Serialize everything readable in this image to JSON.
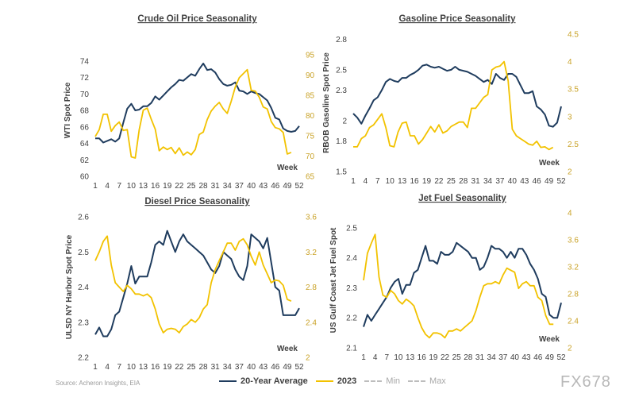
{
  "colors": {
    "avg": "#1f3c5e",
    "y2023": "#f2c200",
    "minmax": "#bdbdbd",
    "text": "#404040"
  },
  "legend": {
    "avg": "20-Year Average",
    "y2023": "2023",
    "min": "Min",
    "max": "Max"
  },
  "source": "Source: Acheron Insights, EIA",
  "watermark": "FX678",
  "chart_data": [
    {
      "type": "line",
      "title": "Crude Oil Price Seasonality",
      "ylabel": "WTI Spot Price",
      "xlabel": "Week",
      "xticks": [
        1,
        4,
        7,
        10,
        13,
        16,
        19,
        22,
        25,
        28,
        31,
        34,
        37,
        40,
        43,
        46,
        49,
        52
      ],
      "xlim": [
        1,
        52
      ],
      "ylim": [
        60,
        76
      ],
      "yticks": [
        60,
        62,
        64,
        66,
        68,
        70,
        72,
        74
      ],
      "y2lim": [
        65,
        97.5
      ],
      "y2ticks": [
        65,
        70,
        75,
        80,
        85,
        90,
        95
      ],
      "series": [
        {
          "name": "20-Year Average",
          "axis": "left",
          "x": [
            1,
            2,
            3,
            4,
            5,
            6,
            7,
            8,
            9,
            10,
            11,
            12,
            13,
            14,
            15,
            16,
            17,
            18,
            19,
            20,
            21,
            22,
            23,
            24,
            25,
            26,
            27,
            28,
            29,
            30,
            31,
            32,
            33,
            34,
            35,
            36,
            37,
            38,
            39,
            40,
            41,
            42,
            43,
            44,
            45,
            46,
            47,
            48,
            49,
            50,
            51,
            52
          ],
          "values": [
            64.6,
            64.6,
            64.1,
            64.3,
            64.5,
            64.2,
            64.6,
            66.5,
            68.2,
            68.8,
            68.0,
            68.1,
            68.5,
            68.5,
            68.9,
            69.7,
            69.3,
            69.8,
            70.3,
            70.8,
            71.2,
            71.7,
            71.6,
            72.0,
            72.4,
            72.2,
            73.0,
            73.7,
            72.9,
            73.0,
            72.6,
            71.8,
            71.2,
            71.0,
            71.1,
            71.4,
            70.4,
            70.3,
            70.0,
            70.3,
            70.1,
            70.0,
            69.6,
            69.2,
            68.3,
            67.1,
            66.9,
            65.8,
            65.5,
            65.4,
            65.5,
            66.1
          ]
        },
        {
          "name": "2023",
          "axis": "right",
          "x": [
            1,
            2,
            3,
            4,
            5,
            6,
            7,
            8,
            9,
            10,
            11,
            12,
            13,
            14,
            15,
            16,
            17,
            18,
            19,
            20,
            21,
            22,
            23,
            24,
            25,
            26,
            27,
            28,
            29,
            30,
            31,
            32,
            33,
            34,
            35,
            36,
            37,
            38,
            39,
            40,
            41,
            42,
            43,
            44,
            45,
            46,
            47,
            48,
            49,
            50
          ],
          "values": [
            74.8,
            76.5,
            80.3,
            80.3,
            76.1,
            77.5,
            78.4,
            76.3,
            76.5,
            69.8,
            69.5,
            76.5,
            81.3,
            81.8,
            79.1,
            76.6,
            71.3,
            72.2,
            71.6,
            72.1,
            70.6,
            72.0,
            70.2,
            71.0,
            70.3,
            71.6,
            75.3,
            75.9,
            79.0,
            81.1,
            82.3,
            83.2,
            81.6,
            80.5,
            83.5,
            87.0,
            89.3,
            90.3,
            91.3,
            86.2,
            86.0,
            84.5,
            82.1,
            81.6,
            78.5,
            77.0,
            76.7,
            75.8,
            70.5,
            70.9
          ]
        }
      ]
    },
    {
      "type": "line",
      "title": "Gasoline Price Seasonality",
      "ylabel": "RBOB Gasoline Spot Price",
      "xlabel": "Week",
      "xticks": [
        1,
        4,
        7,
        10,
        13,
        16,
        19,
        22,
        25,
        28,
        31,
        34,
        37,
        40,
        43,
        46,
        49,
        52
      ],
      "xlim": [
        1,
        52
      ],
      "ylim": [
        1.5,
        2.85
      ],
      "yticks": [
        1.5,
        1.8,
        2.0,
        2.3,
        2.5,
        2.8
      ],
      "y2lim": [
        2.0,
        4.5
      ],
      "y2ticks": [
        2.0,
        2.5,
        3.0,
        3.5,
        4.0,
        4.5
      ],
      "series": [
        {
          "name": "20-Year Average",
          "axis": "left",
          "x": [
            1,
            2,
            3,
            4,
            5,
            6,
            7,
            8,
            9,
            10,
            11,
            12,
            13,
            14,
            15,
            16,
            17,
            18,
            19,
            20,
            21,
            22,
            23,
            24,
            25,
            26,
            27,
            28,
            29,
            30,
            31,
            32,
            33,
            34,
            35,
            36,
            37,
            38,
            39,
            40,
            41,
            42,
            43,
            44,
            45,
            46,
            47,
            48,
            49,
            50,
            51,
            52
          ],
          "values": [
            2.07,
            2.03,
            1.97,
            2.05,
            2.12,
            2.2,
            2.23,
            2.3,
            2.38,
            2.41,
            2.39,
            2.38,
            2.42,
            2.42,
            2.45,
            2.47,
            2.5,
            2.54,
            2.55,
            2.53,
            2.52,
            2.53,
            2.51,
            2.49,
            2.5,
            2.53,
            2.5,
            2.49,
            2.48,
            2.46,
            2.44,
            2.41,
            2.38,
            2.4,
            2.36,
            2.46,
            2.42,
            2.4,
            2.46,
            2.46,
            2.43,
            2.35,
            2.27,
            2.27,
            2.29,
            2.14,
            2.11,
            2.06,
            1.95,
            1.94,
            1.98,
            2.14
          ]
        },
        {
          "name": "2023",
          "axis": "right",
          "x": [
            1,
            2,
            3,
            4,
            5,
            6,
            7,
            8,
            9,
            10,
            11,
            12,
            13,
            14,
            15,
            16,
            17,
            18,
            19,
            20,
            21,
            22,
            23,
            24,
            25,
            26,
            27,
            28,
            29,
            30,
            31,
            32,
            33,
            34,
            35,
            36,
            37,
            38,
            39,
            40,
            41,
            42,
            43,
            44,
            45,
            46,
            47,
            48,
            49,
            50
          ],
          "values": [
            2.45,
            2.45,
            2.6,
            2.65,
            2.8,
            2.85,
            2.95,
            3.05,
            2.8,
            2.47,
            2.45,
            2.72,
            2.88,
            2.9,
            2.65,
            2.65,
            2.5,
            2.58,
            2.7,
            2.82,
            2.72,
            2.85,
            2.7,
            2.74,
            2.82,
            2.86,
            2.9,
            2.9,
            2.8,
            3.15,
            3.15,
            3.25,
            3.35,
            3.4,
            3.85,
            3.9,
            3.92,
            4.0,
            3.65,
            2.77,
            2.65,
            2.6,
            2.55,
            2.5,
            2.48,
            2.55,
            2.44,
            2.45,
            2.4,
            2.44
          ]
        }
      ]
    },
    {
      "type": "line",
      "title": "Diesel Price Seasonality",
      "ylabel": "ULSD NY Harbor Spot Price",
      "xlabel": "Week",
      "xticks": [
        1,
        4,
        7,
        10,
        13,
        16,
        19,
        22,
        25,
        28,
        31,
        34,
        37,
        40,
        43,
        46,
        49,
        52
      ],
      "xlim": [
        1,
        52
      ],
      "ylim": [
        2.2,
        2.6
      ],
      "yticks": [
        2.2,
        2.3,
        2.4,
        2.5,
        2.6
      ],
      "y2lim": [
        2.0,
        3.6
      ],
      "y2ticks": [
        2.0,
        2.4,
        2.8,
        3.2,
        3.6
      ],
      "series": [
        {
          "name": "20-Year Average",
          "axis": "left",
          "x": [
            1,
            2,
            3,
            4,
            5,
            6,
            7,
            8,
            9,
            10,
            11,
            12,
            13,
            14,
            15,
            16,
            17,
            18,
            19,
            20,
            21,
            22,
            23,
            24,
            25,
            26,
            27,
            28,
            29,
            30,
            31,
            32,
            33,
            34,
            35,
            36,
            37,
            38,
            39,
            40,
            41,
            42,
            43,
            44,
            45,
            46,
            47,
            48,
            49,
            50,
            51,
            52
          ],
          "values": [
            2.265,
            2.285,
            2.26,
            2.26,
            2.28,
            2.32,
            2.33,
            2.37,
            2.41,
            2.46,
            2.41,
            2.43,
            2.43,
            2.43,
            2.47,
            2.52,
            2.53,
            2.52,
            2.56,
            2.53,
            2.5,
            2.53,
            2.55,
            2.53,
            2.52,
            2.51,
            2.5,
            2.49,
            2.47,
            2.45,
            2.44,
            2.46,
            2.5,
            2.49,
            2.48,
            2.45,
            2.43,
            2.42,
            2.46,
            2.55,
            2.54,
            2.53,
            2.51,
            2.54,
            2.47,
            2.4,
            2.39,
            2.32,
            2.32,
            2.32,
            2.32,
            2.34
          ]
        },
        {
          "name": "2023",
          "axis": "right",
          "x": [
            1,
            2,
            3,
            4,
            5,
            6,
            7,
            8,
            9,
            10,
            11,
            12,
            13,
            14,
            15,
            16,
            17,
            18,
            19,
            20,
            21,
            22,
            23,
            24,
            25,
            26,
            27,
            28,
            29,
            30,
            31,
            32,
            33,
            34,
            35,
            36,
            37,
            38,
            39,
            40,
            41,
            42,
            43,
            44,
            45,
            46,
            47,
            48,
            49,
            50
          ],
          "values": [
            3.1,
            3.2,
            3.32,
            3.38,
            3.05,
            2.85,
            2.8,
            2.75,
            2.82,
            2.78,
            2.72,
            2.72,
            2.7,
            2.72,
            2.68,
            2.55,
            2.38,
            2.28,
            2.32,
            2.33,
            2.32,
            2.28,
            2.35,
            2.38,
            2.43,
            2.4,
            2.45,
            2.55,
            2.6,
            2.85,
            3.0,
            3.1,
            3.2,
            3.3,
            3.3,
            3.22,
            3.32,
            3.35,
            3.28,
            3.15,
            3.05,
            3.2,
            3.05,
            2.95,
            2.85,
            2.88,
            2.87,
            2.82,
            2.66,
            2.64
          ]
        }
      ]
    },
    {
      "type": "line",
      "title": "Jet Fuel Seasonality",
      "ylabel": "US Gulf Coast Jet Fuel Spot",
      "xlabel": "Week",
      "xticks": [
        1,
        4,
        7,
        10,
        13,
        16,
        19,
        22,
        25,
        28,
        31,
        34,
        37,
        40,
        43,
        46,
        49,
        52
      ],
      "xlim": [
        1,
        52
      ],
      "ylim": [
        2.1,
        2.55
      ],
      "yticks": [
        2.1,
        2.2,
        2.3,
        2.4,
        2.5
      ],
      "y2lim": [
        2.0,
        4.0
      ],
      "y2ticks": [
        2.0,
        2.4,
        2.8,
        3.2,
        3.6,
        4.0
      ],
      "series": [
        {
          "name": "20-Year Average",
          "axis": "left",
          "x": [
            1,
            2,
            3,
            4,
            5,
            6,
            7,
            8,
            9,
            10,
            11,
            12,
            13,
            14,
            15,
            16,
            17,
            18,
            19,
            20,
            21,
            22,
            23,
            24,
            25,
            26,
            27,
            28,
            29,
            30,
            31,
            32,
            33,
            34,
            35,
            36,
            37,
            38,
            39,
            40,
            41,
            42,
            43,
            44,
            45,
            46,
            47,
            48,
            49,
            50,
            51,
            52
          ],
          "values": [
            2.17,
            2.21,
            2.19,
            2.21,
            2.23,
            2.25,
            2.27,
            2.3,
            2.32,
            2.33,
            2.28,
            2.31,
            2.31,
            2.35,
            2.36,
            2.4,
            2.44,
            2.39,
            2.39,
            2.38,
            2.42,
            2.41,
            2.41,
            2.42,
            2.45,
            2.44,
            2.43,
            2.42,
            2.4,
            2.4,
            2.36,
            2.37,
            2.4,
            2.44,
            2.43,
            2.43,
            2.42,
            2.4,
            2.42,
            2.4,
            2.43,
            2.43,
            2.41,
            2.38,
            2.36,
            2.33,
            2.28,
            2.27,
            2.21,
            2.2,
            2.2,
            2.25
          ]
        },
        {
          "name": "2023",
          "axis": "right",
          "x": [
            1,
            2,
            3,
            4,
            5,
            6,
            7,
            8,
            9,
            10,
            11,
            12,
            13,
            14,
            15,
            16,
            17,
            18,
            19,
            20,
            21,
            22,
            23,
            24,
            25,
            26,
            27,
            28,
            29,
            30,
            31,
            32,
            33,
            34,
            35,
            36,
            37,
            38,
            39,
            40,
            41,
            42,
            43,
            44,
            45,
            46,
            47,
            48,
            49,
            50
          ],
          "values": [
            3.0,
            3.4,
            3.55,
            3.68,
            3.05,
            2.78,
            2.75,
            2.85,
            2.8,
            2.7,
            2.65,
            2.72,
            2.68,
            2.62,
            2.45,
            2.3,
            2.2,
            2.15,
            2.22,
            2.22,
            2.2,
            2.15,
            2.25,
            2.25,
            2.28,
            2.25,
            2.3,
            2.35,
            2.4,
            2.55,
            2.75,
            2.92,
            2.95,
            2.95,
            2.98,
            2.95,
            3.08,
            3.18,
            3.15,
            3.12,
            2.88,
            2.95,
            2.98,
            2.92,
            2.92,
            2.75,
            2.7,
            2.48,
            2.35,
            2.35
          ]
        }
      ]
    }
  ]
}
